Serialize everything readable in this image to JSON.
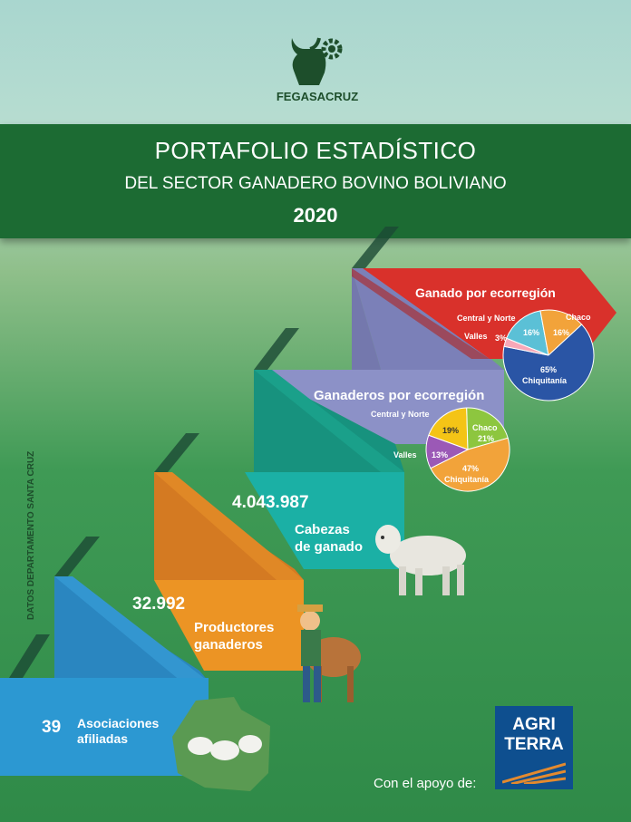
{
  "header": {
    "org": "FEGASACRUZ",
    "title": "PORTAFOLIO ESTADÍSTICO",
    "subtitle": "DEL SECTOR GANADERO BOVINO BOLIVIANO",
    "year": "2020"
  },
  "side_label": "DATOS DEPARTAMENTO SANTA CRUZ",
  "steps": [
    {
      "value": "39",
      "label_1": "Asociaciones",
      "label_2": "afiliadas"
    },
    {
      "value": "32.992",
      "label_1": "Productores",
      "label_2": "ganaderos"
    },
    {
      "value": "4.043.987",
      "label_1": "Cabezas",
      "label_2": "de ganado"
    }
  ],
  "ganaderos": {
    "title": "Ganaderos por ecorregión",
    "slices": [
      {
        "region": "Central y Norte",
        "pct_label": "19%",
        "value": 19,
        "color": "#f4c416"
      },
      {
        "region": "Chaco",
        "pct_label": "21%",
        "value": 21,
        "color": "#8dc63f"
      },
      {
        "region": "Chiquitanía",
        "pct_label": "47%",
        "value": 47,
        "color": "#f2a33a"
      },
      {
        "region": "Valles",
        "pct_label": "13%",
        "value": 13,
        "color": "#9b59b6"
      }
    ]
  },
  "ganado": {
    "title": "Ganado por ecorregión",
    "slices": [
      {
        "region": "Central y Norte",
        "pct_label": "16%",
        "value": 16,
        "color": "#5bc0d6"
      },
      {
        "region": "Chaco",
        "pct_label": "16%",
        "value": 16,
        "color": "#f2a33a"
      },
      {
        "region": "Chiquitanía",
        "pct_label": "65%",
        "value": 65,
        "color": "#2a55a5"
      },
      {
        "region": "Valles",
        "pct_label": "3%",
        "value": 3,
        "color": "#f7a8b8"
      }
    ]
  },
  "footer": {
    "support_text": "Con el apoyo de:",
    "sponsor_line1": "AGRI",
    "sponsor_line2": "TERRA"
  }
}
